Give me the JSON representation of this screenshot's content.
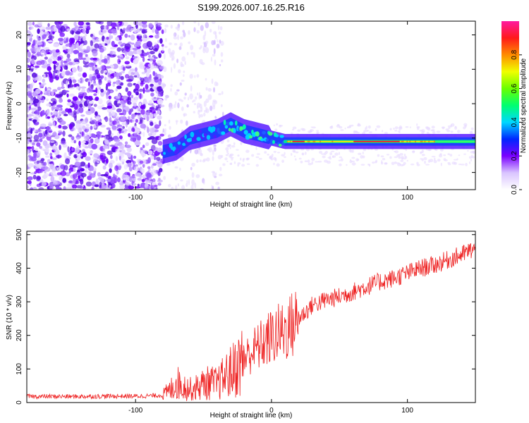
{
  "figure_title": "S199.2026.007.16.25.R16",
  "chart_data": [
    {
      "type": "heatmap",
      "title": "S199.2026.007.16.25.R16",
      "xlabel": "Height of straight line (km)",
      "ylabel": "Frequency (Hz)",
      "xlim": [
        -180,
        150
      ],
      "ylim": [
        -25,
        24
      ],
      "xticks": [
        -100,
        0,
        100
      ],
      "yticks": [
        -20,
        -10,
        0,
        10,
        20
      ],
      "colorbar": {
        "label": "Normalized spectral amplitude",
        "range": [
          0.0,
          1.0
        ],
        "ticks": [
          0.0,
          0.2,
          0.4,
          0.6,
          0.8
        ],
        "tick_labels": [
          "0.0",
          "0.2",
          "0.4",
          "0.6",
          "0.8"
        ]
      },
      "ridge": {
        "x": [
          -80,
          -70,
          -60,
          -50,
          -40,
          -30,
          -20,
          -10,
          0,
          10,
          20,
          40,
          60,
          80,
          100,
          120,
          150
        ],
        "y": [
          -14,
          -13,
          -10,
          -9,
          -8,
          -6,
          -8,
          -9,
          -10,
          -11,
          -11,
          -11,
          -11,
          -11,
          -11,
          -11,
          -11
        ]
      }
    },
    {
      "type": "line",
      "xlabel": "Height of straight line (km)",
      "ylabel": "SNR (10 * v/v)",
      "xlim": [
        -180,
        150
      ],
      "ylim": [
        0,
        510
      ],
      "xticks": [
        -100,
        0,
        100
      ],
      "yticks": [
        0,
        100,
        200,
        300,
        400,
        500
      ],
      "series": [
        {
          "name": "SNR",
          "color": "#ee2222",
          "x": [
            -180,
            -160,
            -140,
            -120,
            -100,
            -90,
            -80,
            -75,
            -70,
            -65,
            -60,
            -55,
            -50,
            -45,
            -40,
            -35,
            -30,
            -25,
            -20,
            -15,
            -10,
            -5,
            0,
            5,
            10,
            15,
            20,
            25,
            30,
            40,
            50,
            60,
            70,
            80,
            90,
            100,
            110,
            120,
            130,
            140,
            150
          ],
          "y": [
            18,
            18,
            18,
            19,
            19,
            20,
            22,
            35,
            60,
            50,
            40,
            45,
            55,
            60,
            55,
            75,
            90,
            110,
            130,
            150,
            165,
            180,
            195,
            205,
            215,
            230,
            250,
            270,
            290,
            305,
            315,
            330,
            345,
            360,
            370,
            385,
            400,
            410,
            425,
            440,
            460
          ]
        }
      ]
    }
  ]
}
